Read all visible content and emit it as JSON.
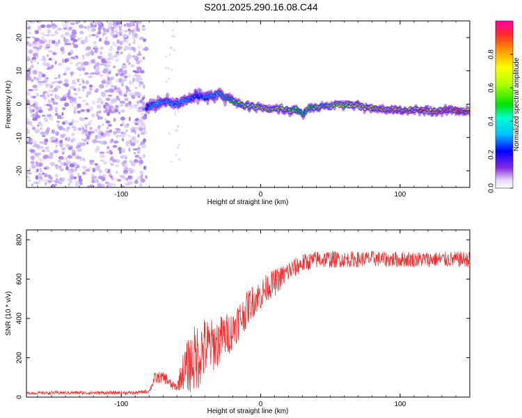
{
  "title": "S201.2025.290.16.08.C44",
  "colors": {
    "snr_line": "#ee3030",
    "noise": "#9b6bf0",
    "noise_light": "#d9c6fb",
    "axis": "#000000"
  },
  "chart_data": [
    {
      "type": "heatmap",
      "name": "spectrogram",
      "xlabel": "Height of straight line (km)",
      "ylabel": "Frequency (Hz)",
      "xlim": [
        -168,
        150
      ],
      "ylim": [
        -25,
        25
      ],
      "xticks": [
        -100,
        0,
        100
      ],
      "xtick_labels": [
        "-100",
        "0",
        "100"
      ],
      "yticks": [
        -20,
        -10,
        0,
        10,
        20
      ],
      "ytick_labels": [
        "-20",
        "-10",
        "0",
        "10",
        "20"
      ],
      "noise_region_x": [
        -168,
        -82
      ],
      "signal_track": {
        "x": [
          -82,
          -75,
          -70,
          -65,
          -60,
          -55,
          -50,
          -45,
          -40,
          -35,
          -30,
          -25,
          -20,
          -15,
          -10,
          -5,
          0,
          5,
          10,
          15,
          20,
          25,
          30,
          35,
          40,
          45,
          50,
          55,
          60,
          65,
          70,
          75,
          80,
          85,
          90,
          95,
          100,
          105,
          110,
          115,
          120,
          125,
          130,
          135,
          140,
          145,
          150
        ],
        "freq": [
          -1,
          0,
          1,
          0.5,
          0,
          1,
          1.5,
          2.5,
          2,
          2.5,
          3,
          2,
          1,
          0,
          -0.5,
          -1,
          -1,
          -1.5,
          -1.5,
          -1,
          -2,
          -1.5,
          -3,
          -1,
          -1,
          -0.5,
          -1,
          0,
          -0.5,
          0,
          -0.5,
          -1,
          -1,
          -1.5,
          -1.5,
          -1.5,
          -2,
          -2,
          -1.5,
          -2,
          -2,
          -2,
          -2,
          -1.5,
          -2,
          -2,
          -2
        ],
        "amplitude": [
          0.3,
          0.4,
          0.45,
          0.4,
          0.35,
          0.4,
          0.35,
          0.3,
          0.35,
          0.4,
          0.5,
          0.55,
          0.6,
          0.65,
          0.7,
          0.7,
          0.75,
          0.75,
          0.7,
          0.75,
          0.7,
          0.65,
          0.6,
          0.6,
          0.65,
          0.65,
          0.7,
          0.7,
          0.7,
          0.75,
          0.75,
          0.8,
          0.8,
          0.85,
          0.85,
          0.9,
          0.9,
          0.92,
          0.9,
          0.92,
          0.93,
          0.93,
          0.95,
          0.95,
          0.95,
          0.95,
          0.95
        ]
      },
      "colorbar": {
        "label": "Normalized spectral amplitude",
        "range": [
          0,
          1
        ],
        "ticks": [
          0.0,
          0.2,
          0.4,
          0.6,
          0.8
        ],
        "tick_labels": [
          "0.0",
          "0.2",
          "0.4",
          "0.6",
          "0.8"
        ]
      }
    },
    {
      "type": "line",
      "name": "snr",
      "xlabel": "Height of straight line (km)",
      "ylabel": "SNR (10 * v/v)",
      "xlim": [
        -168,
        150
      ],
      "ylim": [
        0,
        850
      ],
      "xticks": [
        -100,
        0,
        100
      ],
      "xtick_labels": [
        "-100",
        "0",
        "100"
      ],
      "yticks": [
        0,
        200,
        400,
        600,
        800
      ],
      "ytick_labels": [
        "0",
        "200",
        "400",
        "600",
        "800"
      ],
      "series": [
        {
          "name": "SNR",
          "x": [
            -168,
            -150,
            -130,
            -110,
            -90,
            -80,
            -76,
            -72,
            -68,
            -64,
            -60,
            -56,
            -52,
            -48,
            -44,
            -40,
            -36,
            -32,
            -28,
            -24,
            -20,
            -16,
            -12,
            -8,
            -4,
            0,
            5,
            10,
            15,
            20,
            25,
            30,
            35,
            40,
            45,
            50,
            60,
            70,
            80,
            90,
            100,
            110,
            120,
            130,
            140,
            150
          ],
          "mean": [
            20,
            22,
            22,
            22,
            22,
            30,
            95,
            100,
            95,
            60,
            50,
            130,
            160,
            190,
            220,
            250,
            260,
            270,
            300,
            320,
            340,
            390,
            420,
            470,
            500,
            520,
            560,
            580,
            610,
            640,
            660,
            680,
            690,
            700,
            700,
            700,
            700,
            700,
            705,
            700,
            700,
            700,
            700,
            700,
            700,
            700
          ],
          "spread": [
            6,
            8,
            8,
            8,
            8,
            10,
            30,
            30,
            30,
            25,
            20,
            90,
            140,
            170,
            180,
            160,
            140,
            130,
            120,
            110,
            100,
            100,
            90,
            90,
            80,
            80,
            70,
            70,
            60,
            55,
            50,
            50,
            45,
            45,
            45,
            45,
            40,
            40,
            40,
            40,
            40,
            40,
            40,
            40,
            40,
            40
          ]
        }
      ]
    }
  ]
}
